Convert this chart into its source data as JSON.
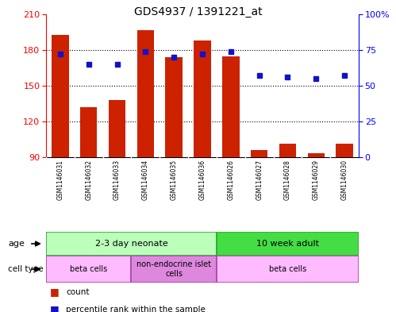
{
  "title": "GDS4937 / 1391221_at",
  "samples": [
    "GSM1146031",
    "GSM1146032",
    "GSM1146033",
    "GSM1146034",
    "GSM1146035",
    "GSM1146036",
    "GSM1146026",
    "GSM1146027",
    "GSM1146028",
    "GSM1146029",
    "GSM1146030"
  ],
  "counts": [
    193,
    132,
    138,
    197,
    174,
    188,
    175,
    96,
    101,
    93,
    101
  ],
  "percentiles": [
    72,
    65,
    65,
    74,
    70,
    72,
    74,
    57,
    56,
    55,
    57
  ],
  "ymin": 90,
  "ymax": 210,
  "yticks": [
    90,
    120,
    150,
    180,
    210
  ],
  "yright_ticks": [
    0,
    25,
    50,
    75,
    100
  ],
  "bar_color": "#cc2200",
  "dot_color": "#1111cc",
  "age_groups": [
    {
      "label": "2-3 day neonate",
      "start": 0,
      "end": 6,
      "color": "#bbffbb"
    },
    {
      "label": "10 week adult",
      "start": 6,
      "end": 11,
      "color": "#44dd44"
    }
  ],
  "cell_type_groups": [
    {
      "label": "beta cells",
      "start": 0,
      "end": 3,
      "color": "#ffbbff"
    },
    {
      "label": "non-endocrine islet\ncells",
      "start": 3,
      "end": 6,
      "color": "#dd88dd"
    },
    {
      "label": "beta cells",
      "start": 6,
      "end": 11,
      "color": "#ffbbff"
    }
  ],
  "sample_bg": "#cccccc",
  "bg_color": "#ffffff",
  "grid_color": "#000000"
}
